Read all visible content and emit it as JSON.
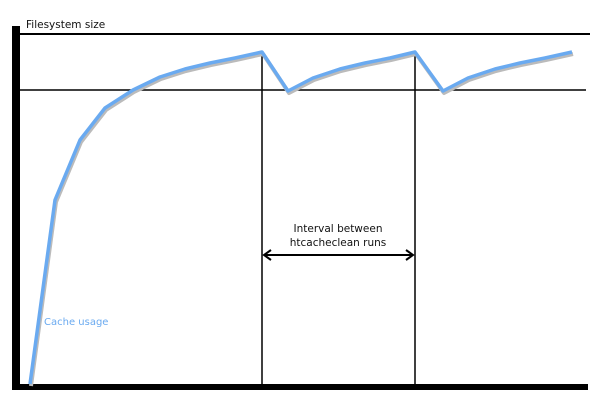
{
  "diagram": {
    "y_axis_label": "Filesystem size",
    "curve_label": "Cache usage",
    "interval_label_line1": "Interval between",
    "interval_label_line2": "htcacheclean runs",
    "colors": {
      "curve": "#6aaaf0",
      "axes": "#000000",
      "shadow": "#bbbbbb"
    }
  }
}
